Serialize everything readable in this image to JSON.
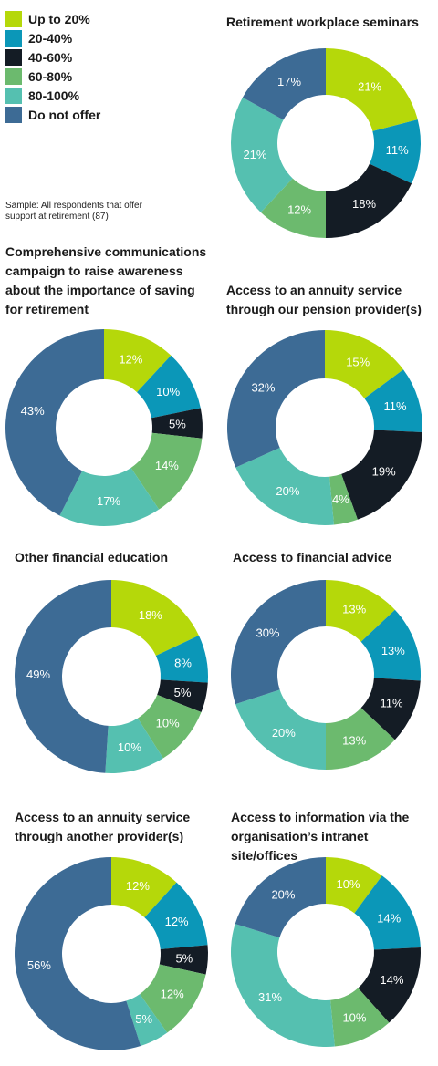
{
  "legend": {
    "items": [
      {
        "label": "Up to 20%",
        "color": "#b5d80a"
      },
      {
        "label": "20-40%",
        "color": "#0b97b8"
      },
      {
        "label": "40-60%",
        "color": "#141c25"
      },
      {
        "label": "60-80%",
        "color": "#6cba6e"
      },
      {
        "label": "80-100%",
        "color": "#55c0b0"
      },
      {
        "label": "Do not offer",
        "color": "#3d6b95"
      }
    ]
  },
  "note": "Sample: All respondents that offer support at retirement (87)",
  "chart_data": [
    {
      "type": "pie",
      "title": "Retirement workplace seminars",
      "categories": [
        "Up to 20%",
        "20-40%",
        "40-60%",
        "60-80%",
        "80-100%",
        "Do not offer"
      ],
      "values": [
        21,
        11,
        18,
        12,
        21,
        17
      ],
      "labels": [
        "21%",
        "11%",
        "18%",
        "12%",
        "21%",
        "17%"
      ]
    },
    {
      "type": "pie",
      "title": "Comprehensive communications campaign to raise awareness about the importance of saving for retirement",
      "categories": [
        "Up to 20%",
        "20-40%",
        "40-60%",
        "60-80%",
        "80-100%",
        "Do not offer"
      ],
      "values": [
        12,
        10,
        5,
        14,
        17,
        43
      ],
      "labels": [
        "12%",
        "10%",
        "5%",
        "14%",
        "17%",
        "43%"
      ]
    },
    {
      "type": "pie",
      "title": "Access to an annuity service through our pension provider(s)",
      "categories": [
        "Up to 20%",
        "20-40%",
        "40-60%",
        "60-80%",
        "80-100%",
        "Do not offer"
      ],
      "values": [
        15,
        11,
        19,
        4,
        20,
        32
      ],
      "labels": [
        "15%",
        "11%",
        "19%",
        "4%",
        "20%",
        "32%"
      ]
    },
    {
      "type": "pie",
      "title": "Other financial education",
      "categories": [
        "Up to 20%",
        "20-40%",
        "40-60%",
        "60-80%",
        "80-100%",
        "Do not offer"
      ],
      "values": [
        18,
        8,
        5,
        10,
        10,
        49
      ],
      "labels": [
        "18%",
        "8%",
        "5%",
        "10%",
        "10%",
        "49%"
      ]
    },
    {
      "type": "pie",
      "title": "Access to financial advice",
      "categories": [
        "Up to 20%",
        "20-40%",
        "40-60%",
        "60-80%",
        "80-100%",
        "Do not offer"
      ],
      "values": [
        13,
        13,
        11,
        13,
        20,
        30
      ],
      "labels": [
        "13%",
        "13%",
        "11%",
        "13%",
        "20%",
        "30%"
      ]
    },
    {
      "type": "pie",
      "title": "Access to an annuity service through another provider(s)",
      "categories": [
        "Up to 20%",
        "20-40%",
        "40-60%",
        "60-80%",
        "80-100%",
        "Do not offer"
      ],
      "values": [
        12,
        12,
        5,
        12,
        5,
        56
      ],
      "labels": [
        "12%",
        "12%",
        "5%",
        "12%",
        "5%",
        "56%"
      ]
    },
    {
      "type": "pie",
      "title": "Access to information via the organisation’s intranet site/offices",
      "categories": [
        "Up to 20%",
        "20-40%",
        "40-60%",
        "60-80%",
        "80-100%",
        "Do not offer"
      ],
      "values": [
        10,
        14,
        14,
        10,
        31,
        20
      ],
      "labels": [
        "10%",
        "14%",
        "14%",
        "10%",
        "31%",
        "20%"
      ]
    }
  ]
}
